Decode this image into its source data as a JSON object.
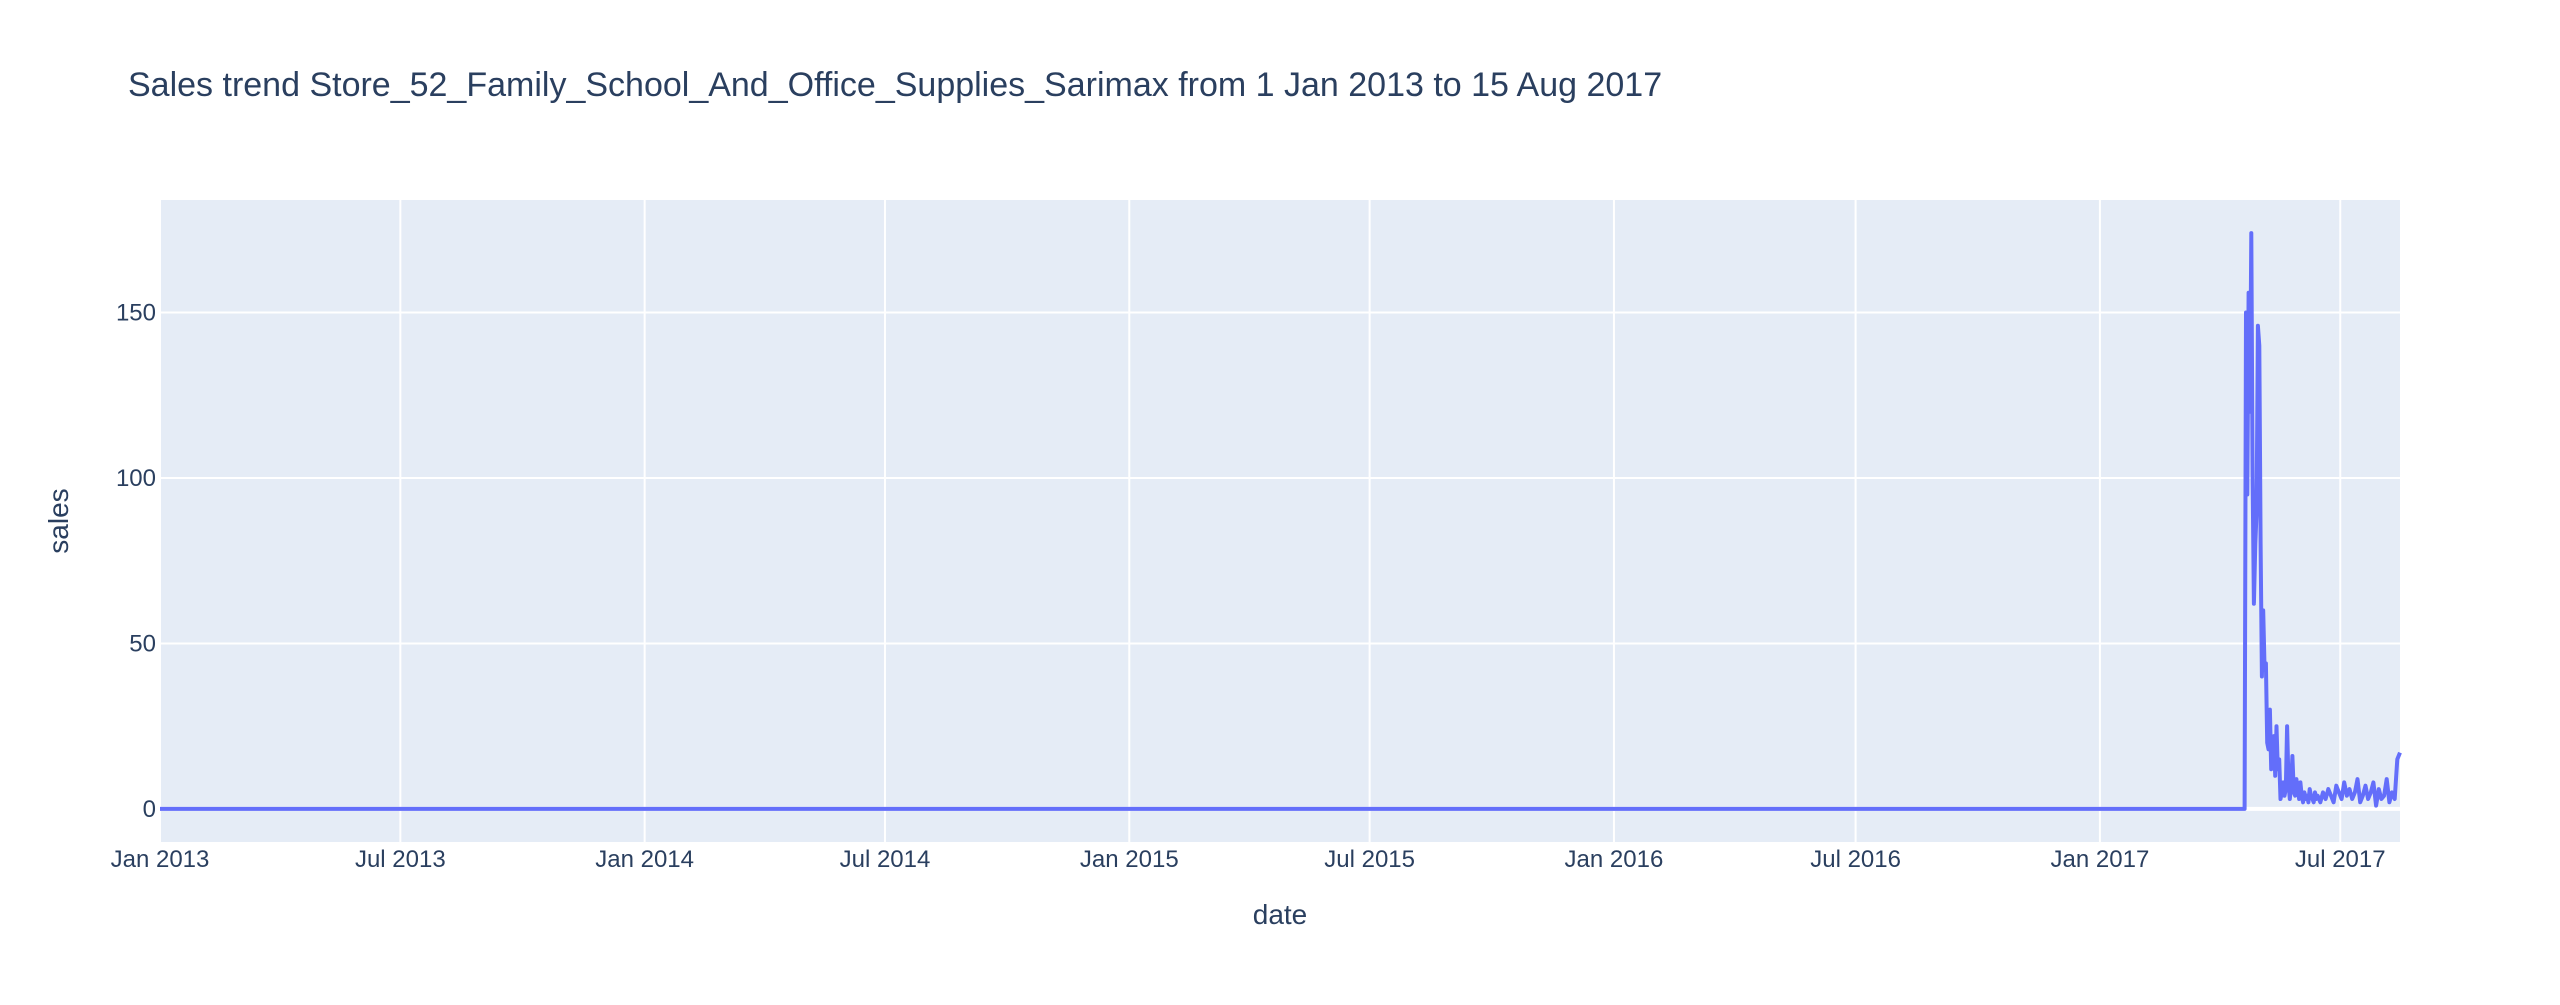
{
  "chart_data": {
    "type": "line",
    "title": "Sales trend Store_52_Family_School_And_Office_Supplies_Sarimax from  1 Jan 2013 to 15 Aug 2017",
    "xlabel": "date",
    "ylabel": "sales",
    "x_range": [
      "2013-01-01",
      "2017-08-15"
    ],
    "ylim": [
      -10,
      184
    ],
    "x_ticks": [
      {
        "date": "2013-01-01",
        "label": "Jan 2013"
      },
      {
        "date": "2013-07-01",
        "label": "Jul 2013"
      },
      {
        "date": "2014-01-01",
        "label": "Jan 2014"
      },
      {
        "date": "2014-07-01",
        "label": "Jul 2014"
      },
      {
        "date": "2015-01-01",
        "label": "Jan 2015"
      },
      {
        "date": "2015-07-01",
        "label": "Jul 2015"
      },
      {
        "date": "2016-01-01",
        "label": "Jan 2016"
      },
      {
        "date": "2016-07-01",
        "label": "Jul 2016"
      },
      {
        "date": "2017-01-01",
        "label": "Jan 2017"
      },
      {
        "date": "2017-07-01",
        "label": "Jul 2017"
      }
    ],
    "y_ticks": [
      0,
      50,
      100,
      150
    ],
    "grid": true,
    "background_color": "#e5ecf6",
    "line_color": "#636efa",
    "series": [
      {
        "x": [
          "2013-01-01",
          "2017-04-20",
          "2017-04-21",
          "2017-04-22",
          "2017-04-23",
          "2017-04-24",
          "2017-04-25",
          "2017-04-26",
          "2017-04-27",
          "2017-04-28",
          "2017-04-29",
          "2017-04-30",
          "2017-05-01",
          "2017-05-02",
          "2017-05-03",
          "2017-05-04",
          "2017-05-05",
          "2017-05-06",
          "2017-05-07",
          "2017-05-08",
          "2017-05-09",
          "2017-05-10",
          "2017-05-11",
          "2017-05-12",
          "2017-05-13",
          "2017-05-14",
          "2017-05-15",
          "2017-05-16",
          "2017-05-17",
          "2017-05-18",
          "2017-05-19",
          "2017-05-20",
          "2017-05-21",
          "2017-05-22",
          "2017-05-23",
          "2017-05-24",
          "2017-05-25",
          "2017-05-26",
          "2017-05-27",
          "2017-05-28",
          "2017-05-29",
          "2017-05-30",
          "2017-05-31",
          "2017-06-01",
          "2017-06-02",
          "2017-06-03",
          "2017-06-04",
          "2017-06-05",
          "2017-06-06",
          "2017-06-07",
          "2017-06-08",
          "2017-06-09",
          "2017-06-10",
          "2017-06-11",
          "2017-06-12",
          "2017-06-13",
          "2017-06-14",
          "2017-06-15",
          "2017-06-16",
          "2017-06-18",
          "2017-06-20",
          "2017-06-22",
          "2017-06-24",
          "2017-06-26",
          "2017-06-28",
          "2017-06-30",
          "2017-07-02",
          "2017-07-04",
          "2017-07-06",
          "2017-07-08",
          "2017-07-10",
          "2017-07-12",
          "2017-07-14",
          "2017-07-16",
          "2017-07-18",
          "2017-07-20",
          "2017-07-22",
          "2017-07-24",
          "2017-07-26",
          "2017-07-28",
          "2017-07-30",
          "2017-08-01",
          "2017-08-03",
          "2017-08-05",
          "2017-08-07",
          "2017-08-09",
          "2017-08-11",
          "2017-08-13",
          "2017-08-15"
        ],
        "y": [
          0,
          0,
          150,
          95,
          156,
          120,
          174,
          100,
          62,
          80,
          90,
          146,
          140,
          80,
          40,
          60,
          42,
          44,
          20,
          18,
          30,
          12,
          15,
          22,
          10,
          25,
          12,
          15,
          3,
          5,
          8,
          4,
          6,
          25,
          8,
          3,
          7,
          16,
          5,
          4,
          9,
          6,
          3,
          8,
          4,
          2,
          5,
          3,
          4,
          2,
          6,
          4,
          3,
          2,
          5,
          3,
          4,
          3,
          2,
          5,
          3,
          6,
          4,
          2,
          7,
          5,
          3,
          8,
          4,
          6,
          3,
          5,
          9,
          2,
          4,
          7,
          3,
          5,
          8,
          1,
          6,
          3,
          4,
          9,
          2,
          5,
          3,
          15,
          17
        ]
      }
    ]
  }
}
